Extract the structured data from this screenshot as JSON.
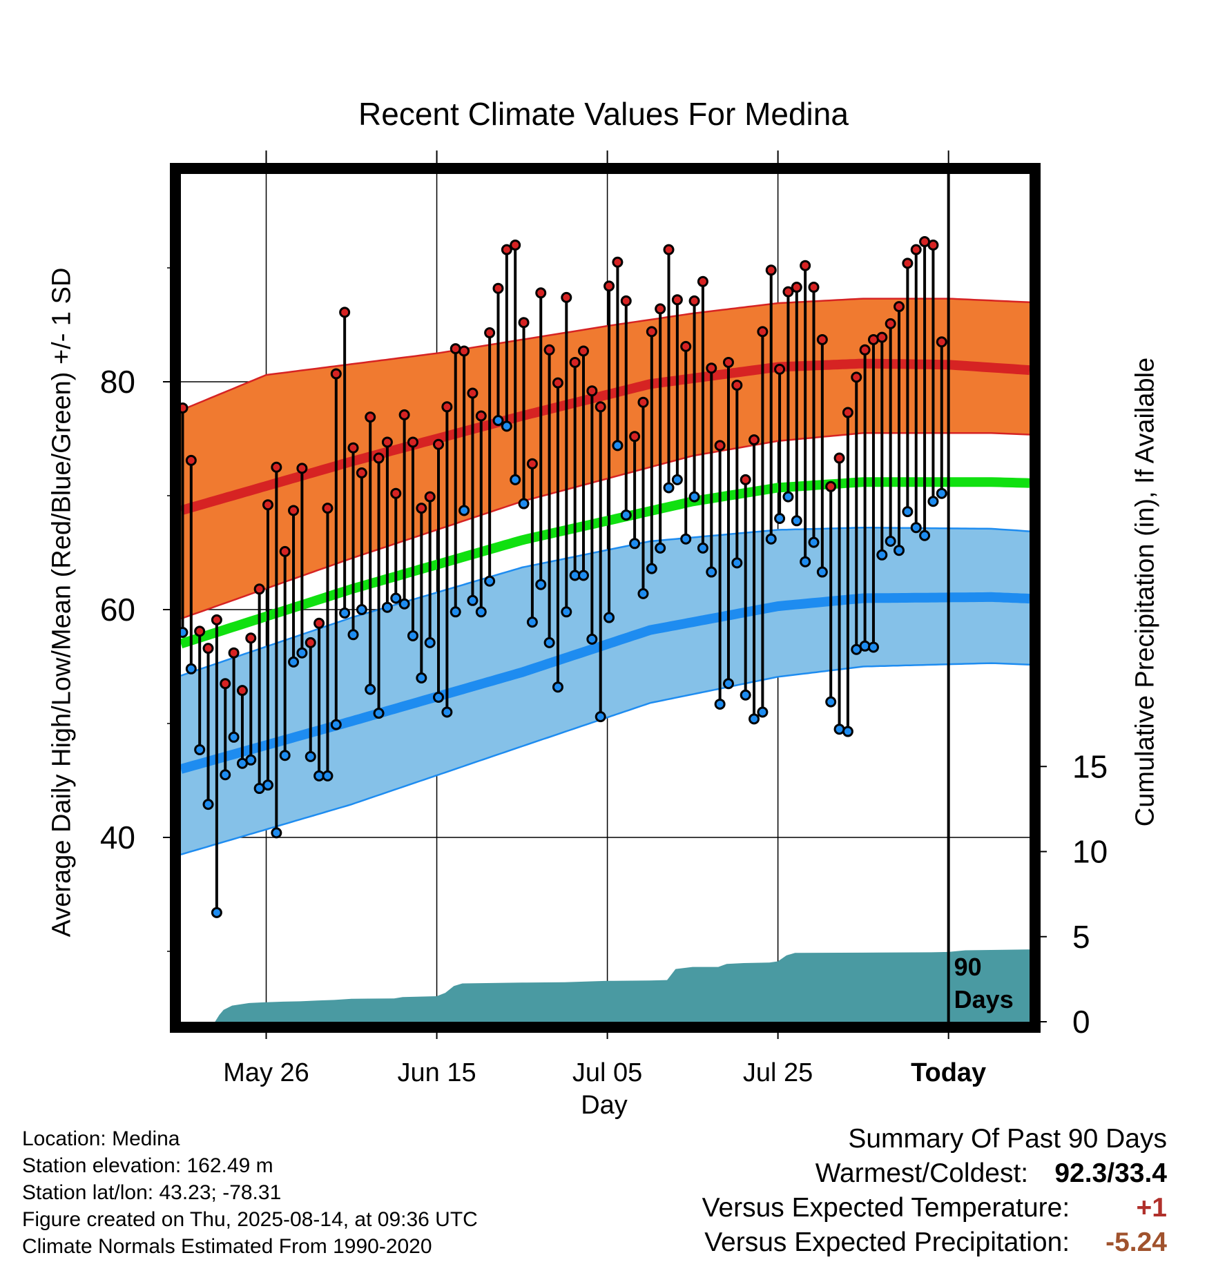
{
  "chart_data": {
    "type": "line",
    "title": "Recent Climate Values For Medina",
    "xlabel": "Day",
    "ylabel": "Average Daily High/Low/Mean (Red/Blue/Green) +/- 1 SD",
    "y2label": "Cumulative Precipitation (in), If Available",
    "ylim": [
      19,
      97
    ],
    "y2lim": [
      0,
      25
    ],
    "y_ticks": [
      40,
      60,
      80
    ],
    "y2_ticks": [
      0,
      5,
      10,
      15
    ],
    "x_ticks": [
      "May 26",
      "Jun 15",
      "Jul 05",
      "Jul 25",
      "Today"
    ],
    "x_range_days": [
      "2025-05-16",
      "2025-08-23"
    ],
    "today_marker": {
      "date": "2025-08-14",
      "label_line1": "90",
      "label_line2": "Days"
    },
    "normal_mean_high": [
      [
        0,
        68.7
      ],
      [
        20,
        73.0
      ],
      [
        40,
        77.0
      ],
      [
        55,
        79.8
      ],
      [
        70,
        81.3
      ],
      [
        80,
        81.6
      ],
      [
        90,
        81.5
      ],
      [
        100,
        81.0
      ],
      [
        110,
        80.2
      ],
      [
        120,
        79.3
      ],
      [
        130,
        78.8
      ]
    ],
    "normal_high_sd_upper": [
      [
        0,
        77.5
      ],
      [
        10,
        80.6
      ],
      [
        30,
        82.5
      ],
      [
        50,
        84.9
      ],
      [
        60,
        86.0
      ],
      [
        70,
        86.9
      ],
      [
        80,
        87.3
      ],
      [
        90,
        87.3
      ],
      [
        105,
        86.8
      ],
      [
        120,
        86.0
      ],
      [
        130,
        85.5
      ]
    ],
    "normal_high_sd_lower": [
      [
        0,
        59.2
      ],
      [
        20,
        64.5
      ],
      [
        40,
        69.5
      ],
      [
        60,
        73.5
      ],
      [
        70,
        74.8
      ],
      [
        80,
        75.5
      ],
      [
        95,
        75.5
      ],
      [
        105,
        75.2
      ],
      [
        115,
        74.6
      ],
      [
        125,
        73.5
      ],
      [
        130,
        73.0
      ]
    ],
    "normal_mean": [
      [
        0,
        57.0
      ],
      [
        20,
        61.8
      ],
      [
        40,
        66.1
      ],
      [
        60,
        69.5
      ],
      [
        70,
        70.7
      ],
      [
        80,
        71.2
      ],
      [
        95,
        71.2
      ],
      [
        105,
        71.0
      ],
      [
        115,
        70.5
      ],
      [
        125,
        69.5
      ],
      [
        130,
        68.7
      ]
    ],
    "normal_mean_low": [
      [
        0,
        46.0
      ],
      [
        20,
        50.2
      ],
      [
        40,
        54.5
      ],
      [
        55,
        58.2
      ],
      [
        70,
        60.3
      ],
      [
        80,
        61.0
      ],
      [
        95,
        61.1
      ],
      [
        105,
        60.8
      ],
      [
        115,
        60.2
      ],
      [
        125,
        59.1
      ],
      [
        130,
        58.3
      ]
    ],
    "normal_low_sd_upper": [
      [
        0,
        54.2
      ],
      [
        20,
        59.3
      ],
      [
        40,
        63.7
      ],
      [
        55,
        66.0
      ],
      [
        70,
        67.0
      ],
      [
        80,
        67.2
      ],
      [
        95,
        67.1
      ],
      [
        105,
        66.6
      ],
      [
        115,
        65.9
      ],
      [
        125,
        65.2
      ],
      [
        130,
        64.8
      ]
    ],
    "normal_low_sd_lower": [
      [
        0,
        38.5
      ],
      [
        20,
        42.9
      ],
      [
        40,
        48.0
      ],
      [
        55,
        51.8
      ],
      [
        70,
        54.1
      ],
      [
        80,
        55.0
      ],
      [
        95,
        55.3
      ],
      [
        105,
        55.0
      ],
      [
        115,
        54.2
      ],
      [
        125,
        52.8
      ],
      [
        130,
        52.0
      ]
    ],
    "daily_high": [
      77.7,
      73.1,
      58.1,
      56.6,
      59.1,
      53.5,
      56.2,
      52.9,
      57.5,
      61.8,
      69.2,
      72.5,
      65.1,
      68.7,
      72.4,
      57.1,
      58.8,
      68.9,
      80.7,
      86.1,
      74.2,
      72.0,
      76.9,
      73.3,
      74.7,
      70.2,
      77.1,
      74.7,
      68.9,
      69.9,
      74.5,
      77.8,
      82.9,
      82.7,
      79.0,
      77.0,
      84.3,
      88.2,
      91.6,
      92.0,
      85.2,
      72.8,
      87.8,
      82.8,
      79.9,
      87.4,
      81.7,
      82.7,
      79.2,
      77.8,
      88.4,
      90.5,
      87.1,
      75.2,
      78.2,
      84.4,
      86.4,
      91.6,
      87.2,
      83.1,
      87.1,
      88.8,
      81.2,
      74.4,
      81.7,
      79.7,
      71.4,
      74.9,
      84.4,
      89.8,
      81.1,
      87.9,
      88.3,
      90.2,
      88.3,
      83.7,
      70.8,
      73.3,
      77.3,
      80.4,
      82.8,
      83.7,
      83.9,
      85.1,
      86.6,
      90.4,
      91.6,
      92.3,
      92.0,
      83.5
    ],
    "daily_low": [
      58.0,
      54.8,
      47.7,
      42.9,
      33.4,
      45.5,
      48.8,
      46.5,
      46.8,
      44.3,
      44.6,
      40.4,
      47.2,
      55.4,
      56.2,
      47.1,
      45.4,
      45.4,
      49.9,
      59.7,
      57.8,
      60.0,
      53.0,
      50.9,
      60.2,
      61.0,
      60.5,
      57.7,
      54.0,
      57.1,
      52.3,
      51.0,
      59.8,
      68.7,
      60.8,
      59.8,
      62.5,
      76.6,
      76.1,
      71.4,
      69.3,
      58.9,
      62.2,
      57.1,
      53.2,
      59.8,
      63.0,
      63.0,
      57.4,
      50.6,
      59.3,
      74.4,
      68.3,
      65.8,
      61.4,
      63.6,
      65.4,
      70.7,
      71.4,
      66.2,
      69.9,
      65.4,
      63.3,
      51.7,
      53.5,
      64.1,
      52.5,
      50.4,
      51.0,
      66.2,
      68.0,
      69.9,
      67.8,
      64.2,
      65.9,
      63.3,
      51.9,
      49.5,
      49.3,
      56.5,
      56.8,
      56.7,
      64.8,
      66.0,
      65.2,
      68.6,
      67.2,
      66.5,
      69.5,
      70.2
    ],
    "cumulative_precip": [
      [
        0,
        0
      ],
      [
        4,
        0
      ],
      [
        4.5,
        0.4
      ],
      [
        5,
        0.7
      ],
      [
        6,
        0.95
      ],
      [
        8,
        1.1
      ],
      [
        10,
        1.15
      ],
      [
        12,
        1.18
      ],
      [
        14,
        1.2
      ],
      [
        16,
        1.25
      ],
      [
        18,
        1.28
      ],
      [
        20,
        1.35
      ],
      [
        22,
        1.36
      ],
      [
        25,
        1.37
      ],
      [
        26,
        1.45
      ],
      [
        30,
        1.5
      ],
      [
        31,
        1.7
      ],
      [
        32,
        2.1
      ],
      [
        33,
        2.25
      ],
      [
        40,
        2.3
      ],
      [
        45,
        2.32
      ],
      [
        50,
        2.4
      ],
      [
        55,
        2.42
      ],
      [
        57,
        2.45
      ],
      [
        58,
        3.1
      ],
      [
        60,
        3.22
      ],
      [
        63,
        3.22
      ],
      [
        64,
        3.4
      ],
      [
        66,
        3.45
      ],
      [
        69,
        3.48
      ],
      [
        70,
        3.55
      ],
      [
        71,
        3.9
      ],
      [
        72,
        4.05
      ],
      [
        80,
        4.06
      ],
      [
        88,
        4.08
      ],
      [
        90,
        4.1
      ],
      [
        92,
        4.2
      ],
      [
        95,
        4.22
      ],
      [
        100,
        4.25
      ],
      [
        105,
        4.28
      ],
      [
        107,
        4.35
      ],
      [
        110,
        4.4
      ],
      [
        114,
        4.45
      ],
      [
        120,
        4.5
      ],
      [
        122,
        4.55
      ],
      [
        123,
        5.0
      ],
      [
        124,
        5.15
      ],
      [
        130,
        5.15
      ]
    ],
    "start_day_offset": 0,
    "today_day_offset": 90
  },
  "footer": {
    "location": "Location: Medina",
    "elevation": "Station elevation: 162.49 m",
    "latlon": "Station lat/lon: 43.23; -78.31",
    "created": "Figure created on Thu, 2025-08-14, at 09:36 UTC",
    "normals": "Climate Normals Estimated From 1990-2020"
  },
  "summary": {
    "heading": "Summary Of Past 90 Days",
    "warm_cold_label": "Warmest/Coldest:",
    "warm_cold_value": "92.3/33.4",
    "temp_label": "Versus Expected Temperature:",
    "temp_value": "+1",
    "precip_label": "Versus Expected Precipitation:",
    "precip_value": "-5.24"
  },
  "colors": {
    "high_band": "#F07A30",
    "high_line": "#D62323",
    "mean_line": "#10E010",
    "low_band": "#85C1E8",
    "low_line": "#1E8CF0",
    "precip": "#4A9AA2",
    "temp_value": "#B0302B",
    "precip_value": "#A0522D"
  }
}
